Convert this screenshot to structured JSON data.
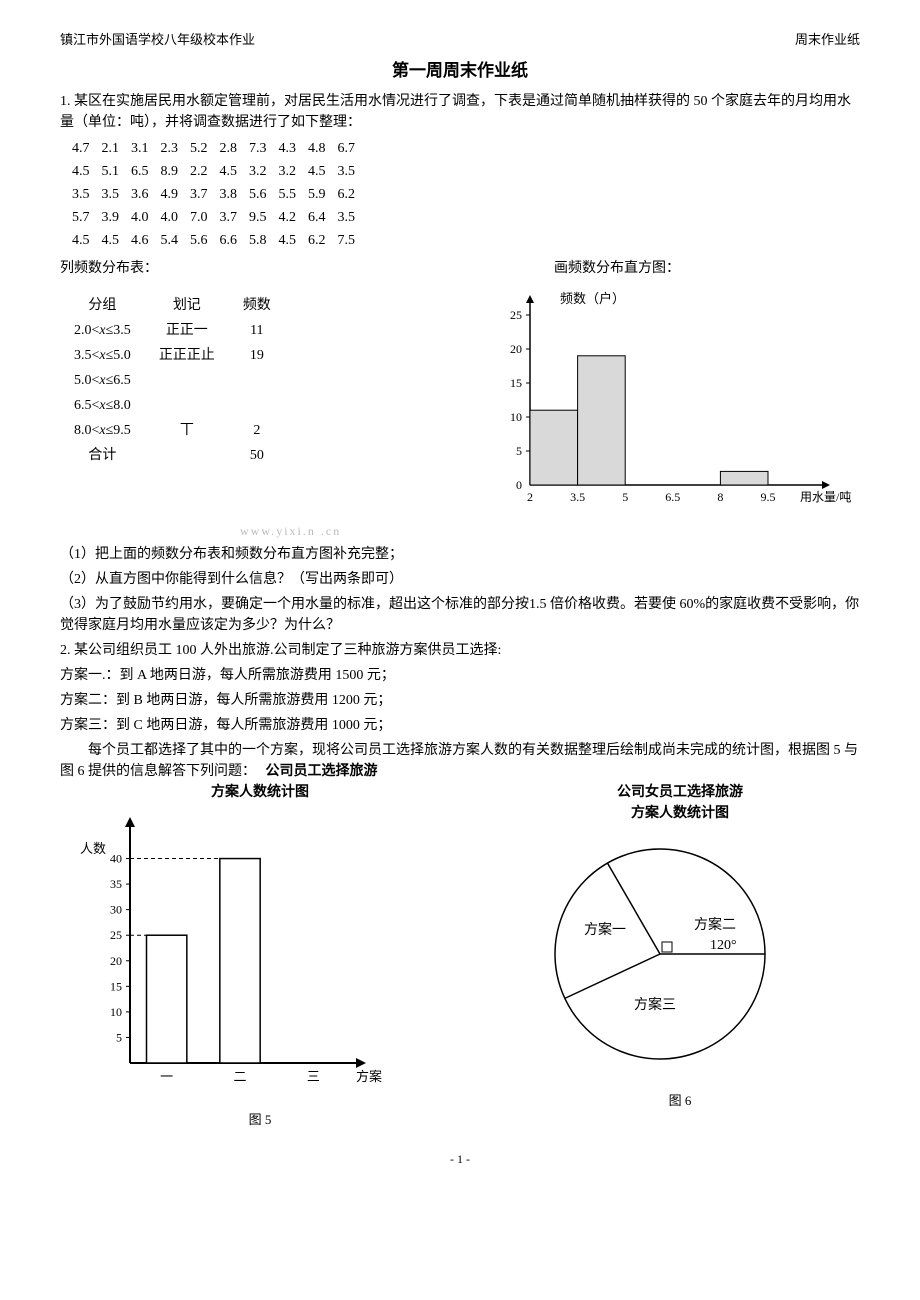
{
  "header": {
    "left": "镇江市外国语学校八年级校本作业",
    "right": "周末作业纸"
  },
  "title": "第一周周末作业纸",
  "q1": {
    "intro": "1. 某区在实施居民用水额定管理前，对居民生活用水情况进行了调查，下表是通过简单随机抽样获得的 50 个家庭去年的月均用水量（单位：吨），并将调查数据进行了如下整理：",
    "rows": [
      [
        "4.7",
        "2.1",
        "3.1",
        "2.3",
        "5.2",
        "2.8",
        "7.3",
        "4.3",
        "4.8",
        "6.7"
      ],
      [
        "4.5",
        "5.1",
        "6.5",
        "8.9",
        "2.2",
        "4.5",
        "3.2",
        "3.2",
        "4.5",
        "3.5"
      ],
      [
        "3.5",
        "3.5",
        "3.6",
        "4.9",
        "3.7",
        "3.8",
        "5.6",
        "5.5",
        "5.9",
        "6.2"
      ],
      [
        "5.7",
        "3.9",
        "4.0",
        "4.0",
        "7.0",
        "3.7",
        "9.5",
        "4.2",
        "6.4",
        "3.5"
      ],
      [
        "4.5",
        "4.5",
        "4.6",
        "5.4",
        "5.6",
        "6.6",
        "5.8",
        "4.5",
        "6.2",
        "7.5"
      ]
    ],
    "list_label": "列频数分布表：",
    "hist_label": "画频数分布直方图：",
    "freq_headers": [
      "分组",
      "划记",
      "频数"
    ],
    "freq_rows": [
      {
        "range": "2.0<x≤3.5",
        "tally": "正正一",
        "count": "11"
      },
      {
        "range": "3.5<x≤5.0",
        "tally": "正正正止",
        "count": "19"
      },
      {
        "range": "5.0<x≤6.5",
        "tally": "",
        "count": ""
      },
      {
        "range": "6.5<x≤8.0",
        "tally": "",
        "count": ""
      },
      {
        "range": "8.0<x≤9.5",
        "tally": "丅",
        "count": "2"
      },
      {
        "range": "合计",
        "tally": "",
        "count": "50"
      }
    ],
    "hist": {
      "ylabel": "频数（户）",
      "xlabel": "用水量/吨",
      "yticks": [
        "0",
        "5",
        "10",
        "15",
        "20",
        "25"
      ],
      "xticks": [
        "2",
        "3.5",
        "5",
        "6.5",
        "8",
        "9.5"
      ],
      "bars": [
        11,
        19,
        0,
        0,
        2
      ],
      "ymax": 25,
      "axis_color": "#000000",
      "bar_fill": "#d9d9d9",
      "bar_stroke": "#000000"
    },
    "sub1": "（1）把上面的频数分布表和频数分布直方图补充完整；",
    "sub2": "（2）从直方图中你能得到什么信息？（写出两条即可）",
    "sub3": "（3）为了鼓励节约用水，要确定一个用水量的标准，超出这个标准的部分按1.5 倍价格收费。若要使 60%的家庭收费不受影响，你觉得家庭月均用水量应该定为多少？为什么？"
  },
  "q2": {
    "intro": "2. 某公司组织员工 100 人外出旅游.公司制定了三种旅游方案供员工选择:",
    "plan1": "方案一.：到 A 地两日游，每人所需旅游费用 1500 元；",
    "plan2": "方案二：到 B 地两日游，每人所需旅游费用 1200 元；",
    "plan3": "方案三：到 C 地两日游，每人所需旅游费用 1000 元；",
    "body": "　　每个员工都选择了其中的一个方案，现将公司员工选择旅游方案人数的有关数据整理后绘制成尚未完成的统计图，根据图 5 与图 6 提供的信息解答下列问题：",
    "bar": {
      "title1": "公司员工选择旅游",
      "title2": "方案人数统计图",
      "ylabel": "人数",
      "xlabel": "方案",
      "yticks": [
        "5",
        "10",
        "15",
        "20",
        "25",
        "30",
        "35",
        "40"
      ],
      "categories": [
        "一",
        "二",
        "三"
      ],
      "values": [
        25,
        40,
        null
      ],
      "ymax": 45,
      "axis_color": "#000000",
      "bar_fill": "#ffffff",
      "bar_stroke": "#000000",
      "caption": "图 5"
    },
    "pie": {
      "title1": "公司女员工选择旅游",
      "title2": "方案人数统计图",
      "labels": {
        "a": "方案一",
        "b": "方案二",
        "c": "方案三"
      },
      "angle_label": "120°",
      "stroke": "#000000",
      "fill": "#ffffff",
      "caption": "图 6"
    }
  },
  "watermark": "www.yixi.n .cn",
  "page_num": "- 1 -"
}
